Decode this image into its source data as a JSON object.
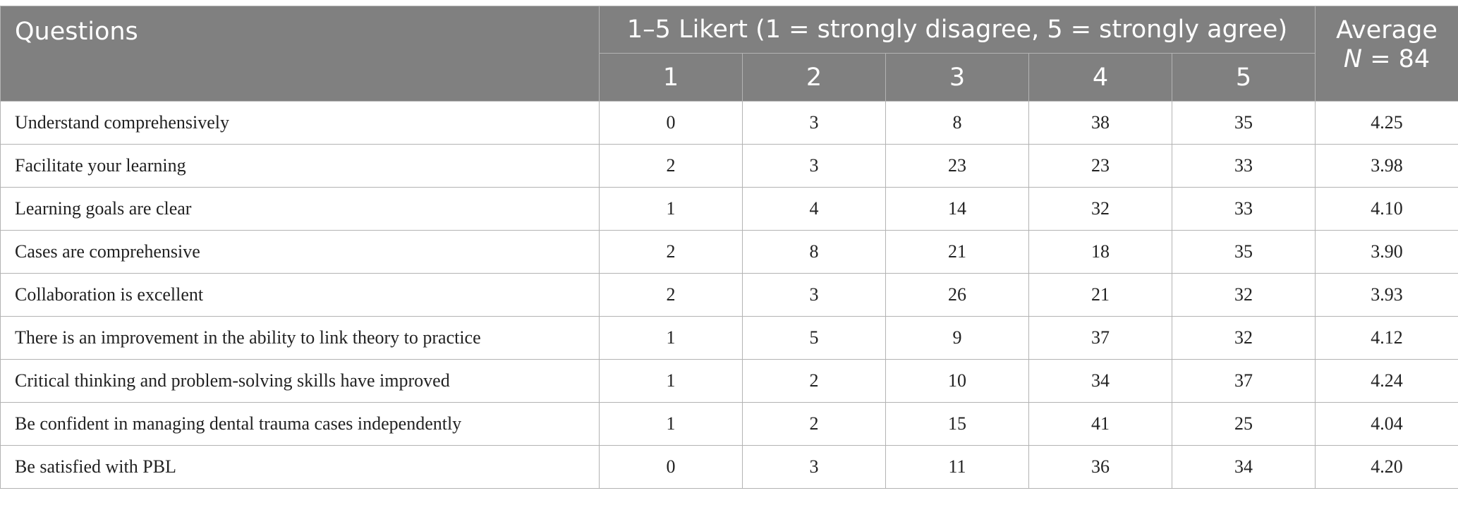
{
  "header": {
    "questions_label": "Questions",
    "likert_label": "1–5 Likert (1 = strongly disagree, 5 = strongly agree)",
    "scale_points": [
      "1",
      "2",
      "3",
      "4",
      "5"
    ],
    "average_label": "Average",
    "n_symbol": "N",
    "n_value": " = 84"
  },
  "rows": [
    {
      "question": "Understand comprehensively",
      "counts": [
        "0",
        "3",
        "8",
        "38",
        "35"
      ],
      "average": "4.25"
    },
    {
      "question": "Facilitate your learning",
      "counts": [
        "2",
        "3",
        "23",
        "23",
        "33"
      ],
      "average": "3.98"
    },
    {
      "question": "Learning goals are clear",
      "counts": [
        "1",
        "4",
        "14",
        "32",
        "33"
      ],
      "average": "4.10"
    },
    {
      "question": "Cases are comprehensive",
      "counts": [
        "2",
        "8",
        "21",
        "18",
        "35"
      ],
      "average": "3.90"
    },
    {
      "question": "Collaboration is excellent",
      "counts": [
        "2",
        "3",
        "26",
        "21",
        "32"
      ],
      "average": "3.93"
    },
    {
      "question": "There is an improvement in the ability to link theory to practice",
      "counts": [
        "1",
        "5",
        "9",
        "37",
        "32"
      ],
      "average": "4.12"
    },
    {
      "question": "Critical thinking and problem-solving skills have improved",
      "counts": [
        "1",
        "2",
        "10",
        "34",
        "37"
      ],
      "average": "4.24"
    },
    {
      "question": "Be confident in managing dental trauma cases independently",
      "counts": [
        "1",
        "2",
        "15",
        "41",
        "25"
      ],
      "average": "4.04"
    },
    {
      "question": "Be satisfied with PBL",
      "counts": [
        "0",
        "3",
        "11",
        "36",
        "34"
      ],
      "average": "4.20"
    }
  ],
  "colors": {
    "header_bg": "#808080",
    "header_text": "#ffffff",
    "grid": "#b3b3b3"
  }
}
